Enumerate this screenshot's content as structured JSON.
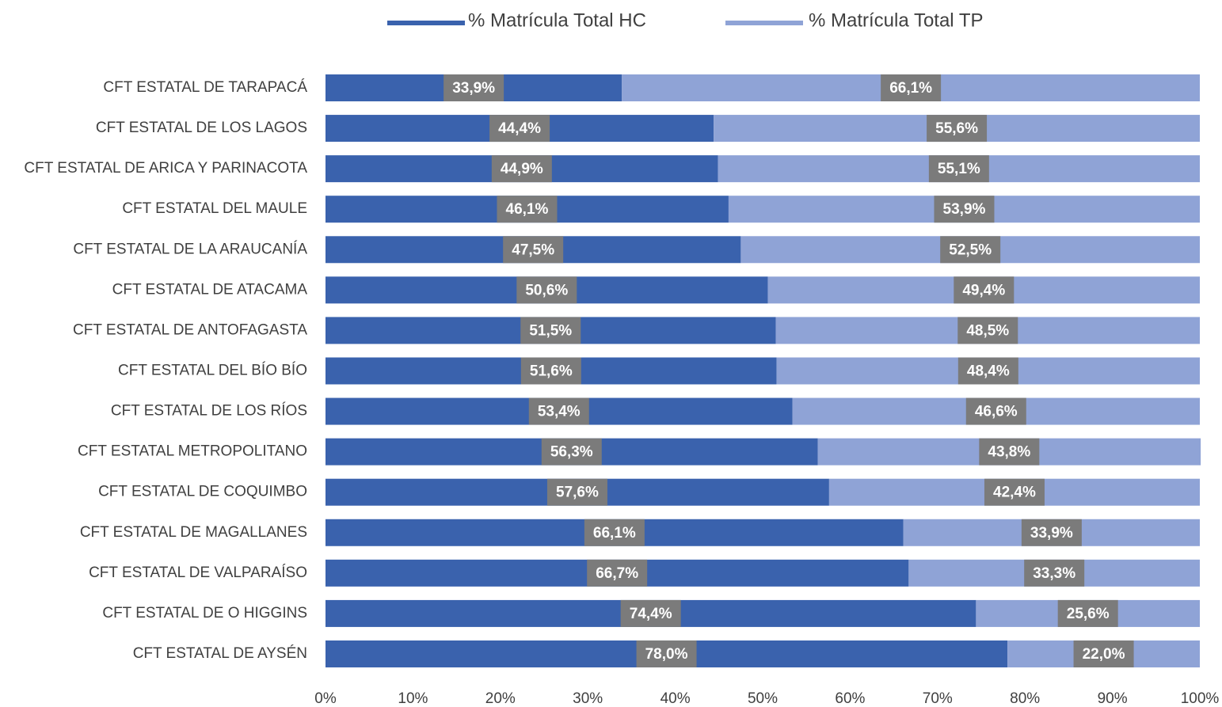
{
  "chart_data": {
    "type": "stacked-bar-horizontal",
    "categories": [
      "CFT ESTATAL DE TARAPACÁ",
      "CFT ESTATAL DE LOS LAGOS",
      "CFT ESTATAL DE ARICA Y PARINACOTA",
      "CFT ESTATAL DEL MAULE",
      "CFT ESTATAL DE LA ARAUCANÍA",
      "CFT ESTATAL DE ATACAMA",
      "CFT ESTATAL DE ANTOFAGASTA",
      "CFT ESTATAL DEL BÍO BÍO",
      "CFT ESTATAL DE LOS RÍOS",
      "CFT ESTATAL  METROPOLITANO",
      "CFT ESTATAL DE COQUIMBO",
      "CFT ESTATAL DE MAGALLANES",
      "CFT ESTATAL DE VALPARAÍSO",
      "CFT ESTATAL DE O HIGGINS",
      "CFT ESTATAL DE AYSÉN"
    ],
    "series": [
      {
        "name": "% Matrícula Total HC",
        "color": "#3a62ad",
        "values": [
          33.9,
          44.4,
          44.9,
          46.1,
          47.5,
          50.6,
          51.5,
          51.6,
          53.4,
          56.3,
          57.6,
          66.1,
          66.7,
          74.4,
          78.0
        ],
        "value_labels": [
          "33,9%",
          "44,4%",
          "44,9%",
          "46,1%",
          "47,5%",
          "50,6%",
          "51,5%",
          "51,6%",
          "53,4%",
          "56,3%",
          "57,6%",
          "66,1%",
          "66,7%",
          "74,4%",
          "78,0%"
        ]
      },
      {
        "name": "% Matrícula Total TP",
        "color": "#8fa3d6",
        "values": [
          66.1,
          55.6,
          55.1,
          53.9,
          52.5,
          49.4,
          48.5,
          48.4,
          46.6,
          43.8,
          42.4,
          33.9,
          33.3,
          25.6,
          22.0
        ],
        "value_labels": [
          "66,1%",
          "55,6%",
          "55,1%",
          "53,9%",
          "52,5%",
          "49,4%",
          "48,5%",
          "48,4%",
          "46,6%",
          "43,8%",
          "42,4%",
          "33,9%",
          "33,3%",
          "25,6%",
          "22,0%"
        ]
      }
    ],
    "xlim": [
      0,
      100
    ],
    "xticks": [
      {
        "value": 0,
        "label": "0%"
      },
      {
        "value": 10,
        "label": "10%"
      },
      {
        "value": 20,
        "label": "20%"
      },
      {
        "value": 30,
        "label": "30%"
      },
      {
        "value": 40,
        "label": "40%"
      },
      {
        "value": 50,
        "label": "50%"
      },
      {
        "value": 60,
        "label": "60%"
      },
      {
        "value": 70,
        "label": "70%"
      },
      {
        "value": 80,
        "label": "80%"
      },
      {
        "value": 90,
        "label": "90%"
      },
      {
        "value": 100,
        "label": "100%"
      }
    ],
    "legend": "top",
    "grid": false
  }
}
